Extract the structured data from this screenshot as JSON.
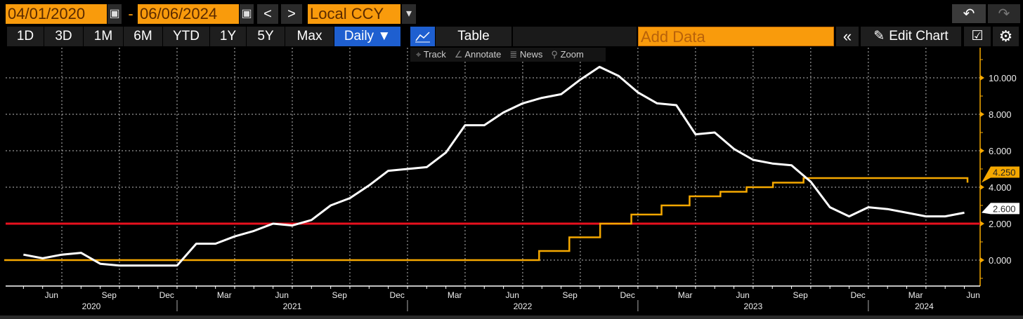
{
  "toolbar": {
    "start_date": "04/01/2020",
    "end_date": "06/06/2024",
    "date_separator": "-",
    "prev_label": "<",
    "next_label": ">",
    "currency": "Local CCY",
    "currency_caret": "▾",
    "undo_icon": "↶",
    "redo_icon": "↷",
    "calendar_icon": "▣",
    "periods": [
      "1D",
      "3D",
      "1M",
      "6M",
      "YTD",
      "1Y",
      "5Y",
      "Max"
    ],
    "frequency": "Daily ▼",
    "chart_icon": "line-chart-icon",
    "table_label": "Table",
    "add_data_placeholder": "Add Data",
    "collapse_label": "«",
    "edit_chart_label": "Edit Chart",
    "pencil_icon": "✎",
    "edit_icon": "☑",
    "settings_icon": "⚙"
  },
  "chart_tools": [
    {
      "icon": "⌖",
      "label": "Track"
    },
    {
      "icon": "∠",
      "label": "Annotate"
    },
    {
      "icon": "≣",
      "label": "News"
    },
    {
      "icon": "⚲",
      "label": "Zoom"
    }
  ],
  "colors": {
    "white_series": "#ffffff",
    "yellow_series": "#f5a800",
    "red_line": "#e8101e",
    "axis": "#f5a800",
    "active": "#1e5fd0",
    "orange_field": "#f99b0c"
  },
  "chart_data": {
    "type": "line",
    "x_range": [
      "2020-04-01",
      "2024-06-06"
    ],
    "ylim": [
      -1.2,
      11.4
    ],
    "y_axis_side": "right",
    "grid": true,
    "y_ticks": [
      "0.000",
      "2.000",
      "4.000",
      "6.000",
      "8.000",
      "10.000"
    ],
    "x_month_labels": [
      {
        "label": "Jun",
        "date": "2020-06"
      },
      {
        "label": "Sep",
        "date": "2020-09"
      },
      {
        "label": "Dec",
        "date": "2020-12"
      },
      {
        "label": "Mar",
        "date": "2021-03"
      },
      {
        "label": "Jun",
        "date": "2021-06"
      },
      {
        "label": "Sep",
        "date": "2021-09"
      },
      {
        "label": "Dec",
        "date": "2021-12"
      },
      {
        "label": "Mar",
        "date": "2022-03"
      },
      {
        "label": "Jun",
        "date": "2022-06"
      },
      {
        "label": "Sep",
        "date": "2022-09"
      },
      {
        "label": "Dec",
        "date": "2022-12"
      },
      {
        "label": "Mar",
        "date": "2023-03"
      },
      {
        "label": "Jun",
        "date": "2023-06"
      },
      {
        "label": "Sep",
        "date": "2023-09"
      },
      {
        "label": "Dec",
        "date": "2023-12"
      },
      {
        "label": "Mar",
        "date": "2024-03"
      },
      {
        "label": "Jun",
        "date": "2024-06"
      }
    ],
    "x_year_labels": [
      "2020",
      "2021",
      "2022",
      "2023",
      "2024"
    ],
    "series": [
      {
        "color": "#ffffff",
        "last_value_label": "2.600",
        "style": "line",
        "points": [
          [
            "2020-04",
            0.3
          ],
          [
            "2020-05",
            0.1
          ],
          [
            "2020-06",
            0.3
          ],
          [
            "2020-07",
            0.4
          ],
          [
            "2020-08",
            -0.2
          ],
          [
            "2020-09",
            -0.3
          ],
          [
            "2020-10",
            -0.3
          ],
          [
            "2020-11",
            -0.3
          ],
          [
            "2020-12",
            -0.3
          ],
          [
            "2021-01",
            0.9
          ],
          [
            "2021-02",
            0.9
          ],
          [
            "2021-03",
            1.3
          ],
          [
            "2021-04",
            1.6
          ],
          [
            "2021-05",
            2.0
          ],
          [
            "2021-06",
            1.9
          ],
          [
            "2021-07",
            2.2
          ],
          [
            "2021-08",
            3.0
          ],
          [
            "2021-09",
            3.4
          ],
          [
            "2021-10",
            4.1
          ],
          [
            "2021-11",
            4.9
          ],
          [
            "2021-12",
            5.0
          ],
          [
            "2022-01",
            5.1
          ],
          [
            "2022-02",
            5.9
          ],
          [
            "2022-03",
            7.4
          ],
          [
            "2022-04",
            7.4
          ],
          [
            "2022-05",
            8.1
          ],
          [
            "2022-06",
            8.6
          ],
          [
            "2022-07",
            8.9
          ],
          [
            "2022-08",
            9.1
          ],
          [
            "2022-09",
            9.9
          ],
          [
            "2022-10",
            10.6
          ],
          [
            "2022-11",
            10.1
          ],
          [
            "2022-12",
            9.2
          ],
          [
            "2023-01",
            8.6
          ],
          [
            "2023-02",
            8.5
          ],
          [
            "2023-03",
            6.9
          ],
          [
            "2023-04",
            7.0
          ],
          [
            "2023-05",
            6.1
          ],
          [
            "2023-06",
            5.5
          ],
          [
            "2023-07",
            5.3
          ],
          [
            "2023-08",
            5.2
          ],
          [
            "2023-09",
            4.3
          ],
          [
            "2023-10",
            2.9
          ],
          [
            "2023-11",
            2.4
          ],
          [
            "2023-12",
            2.9
          ],
          [
            "2024-01",
            2.8
          ],
          [
            "2024-02",
            2.6
          ],
          [
            "2024-03",
            2.4
          ],
          [
            "2024-04",
            2.4
          ],
          [
            "2024-05",
            2.6
          ]
        ]
      },
      {
        "color": "#f5a800",
        "last_value_label": "4.250",
        "style": "step",
        "points": [
          [
            "2020-04-01",
            0.0
          ],
          [
            "2022-07-27",
            0.5
          ],
          [
            "2022-09-14",
            1.25
          ],
          [
            "2022-11-02",
            2.0
          ],
          [
            "2022-12-21",
            2.5
          ],
          [
            "2023-02-08",
            3.0
          ],
          [
            "2023-03-22",
            3.5
          ],
          [
            "2023-05-10",
            3.75
          ],
          [
            "2023-06-21",
            4.0
          ],
          [
            "2023-08-02",
            4.25
          ],
          [
            "2023-09-20",
            4.5
          ],
          [
            "2024-06-06",
            4.25
          ]
        ]
      },
      {
        "color": "#e8101e",
        "style": "horizontal",
        "value": 2.0
      }
    ]
  }
}
